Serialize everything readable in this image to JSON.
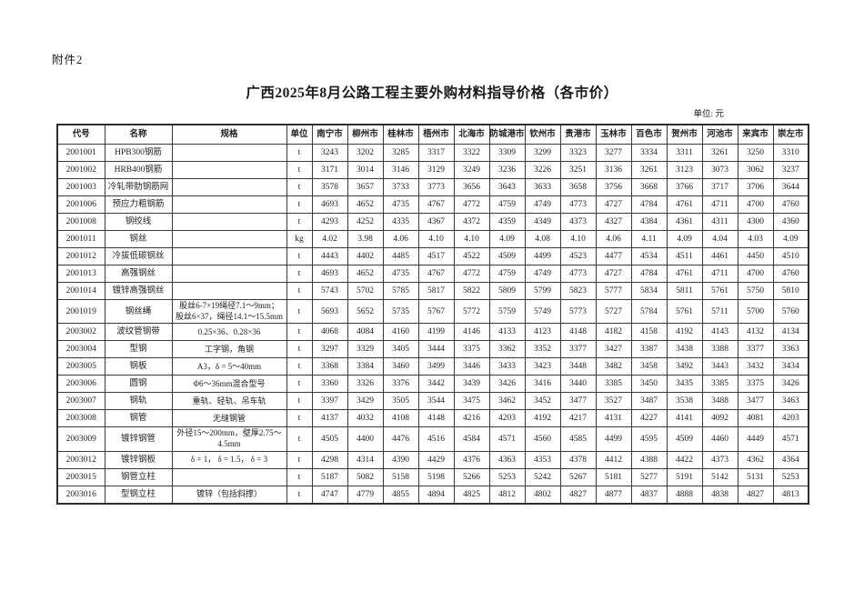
{
  "page": {
    "attachment_label": "附件2",
    "title": "广西2025年8月公路工程主要外购材料指导价格（各市价）",
    "unit_note": "单位: 元"
  },
  "table": {
    "headers": [
      "代号",
      "名称",
      "规格",
      "单位",
      "南宁市",
      "柳州市",
      "桂林市",
      "梧州市",
      "北海市",
      "防城港市",
      "钦州市",
      "贵港市",
      "玉林市",
      "百色市",
      "贺州市",
      "河池市",
      "来宾市",
      "崇左市"
    ],
    "rows": [
      {
        "code": "2001001",
        "name": "HPB300钢筋",
        "spec": "",
        "unit": "t",
        "prices": [
          "3243",
          "3202",
          "3285",
          "3317",
          "3322",
          "3309",
          "3299",
          "3323",
          "3277",
          "3334",
          "3311",
          "3261",
          "3250",
          "3310"
        ]
      },
      {
        "code": "2001002",
        "name": "HRB400钢筋",
        "spec": "",
        "unit": "t",
        "prices": [
          "3171",
          "3014",
          "3146",
          "3129",
          "3249",
          "3236",
          "3226",
          "3251",
          "3136",
          "3261",
          "3123",
          "3073",
          "3062",
          "3237"
        ]
      },
      {
        "code": "2001003",
        "name": "冷轧带肋钢筋网",
        "spec": "",
        "unit": "t",
        "prices": [
          "3578",
          "3657",
          "3733",
          "3773",
          "3656",
          "3643",
          "3633",
          "3658",
          "3756",
          "3668",
          "3766",
          "3717",
          "3706",
          "3644"
        ]
      },
      {
        "code": "2001006",
        "name": "预应力粗钢筋",
        "spec": "",
        "unit": "t",
        "prices": [
          "4693",
          "4652",
          "4735",
          "4767",
          "4772",
          "4759",
          "4749",
          "4773",
          "4727",
          "4784",
          "4761",
          "4711",
          "4700",
          "4760"
        ]
      },
      {
        "code": "2001008",
        "name": "钢绞线",
        "spec": "",
        "unit": "t",
        "prices": [
          "4293",
          "4252",
          "4335",
          "4367",
          "4372",
          "4359",
          "4349",
          "4373",
          "4327",
          "4384",
          "4361",
          "4311",
          "4300",
          "4360"
        ]
      },
      {
        "code": "2001011",
        "name": "钢丝",
        "spec": "",
        "unit": "kg",
        "prices": [
          "4.02",
          "3.98",
          "4.06",
          "4.10",
          "4.10",
          "4.09",
          "4.08",
          "4.10",
          "4.06",
          "4.11",
          "4.09",
          "4.04",
          "4.03",
          "4.09"
        ]
      },
      {
        "code": "2001012",
        "name": "冷拔低碳钢丝",
        "spec": "",
        "unit": "t",
        "prices": [
          "4443",
          "4402",
          "4485",
          "4517",
          "4522",
          "4509",
          "4499",
          "4523",
          "4477",
          "4534",
          "4511",
          "4461",
          "4450",
          "4510"
        ]
      },
      {
        "code": "2001013",
        "name": "高强钢丝",
        "spec": "",
        "unit": "t",
        "prices": [
          "4693",
          "4652",
          "4735",
          "4767",
          "4772",
          "4759",
          "4749",
          "4773",
          "4727",
          "4784",
          "4761",
          "4711",
          "4700",
          "4760"
        ]
      },
      {
        "code": "2001014",
        "name": "镀锌高强钢丝",
        "spec": "",
        "unit": "t",
        "prices": [
          "5743",
          "5702",
          "5785",
          "5817",
          "5822",
          "5809",
          "5799",
          "5823",
          "5777",
          "5834",
          "5811",
          "5761",
          "5750",
          "5810"
        ]
      },
      {
        "code": "2001019",
        "name": "钢丝绳",
        "spec": "股丝6-7×19绳径7.1～9mm； 股丝6×37，绳径14.1～15.5mm",
        "unit": "t",
        "prices": [
          "5693",
          "5652",
          "5735",
          "5767",
          "5772",
          "5759",
          "5749",
          "5773",
          "5727",
          "5784",
          "5761",
          "5711",
          "5700",
          "5760"
        ]
      },
      {
        "code": "2003002",
        "name": "波纹管钢带",
        "spec": "0.25×36、0.28×36",
        "unit": "t",
        "prices": [
          "4068",
          "4084",
          "4160",
          "4199",
          "4146",
          "4133",
          "4123",
          "4148",
          "4182",
          "4158",
          "4192",
          "4143",
          "4132",
          "4134"
        ]
      },
      {
        "code": "2003004",
        "name": "型钢",
        "spec": "工字钢，角钢",
        "unit": "t",
        "prices": [
          "3297",
          "3329",
          "3405",
          "3444",
          "3375",
          "3362",
          "3352",
          "3377",
          "3427",
          "3387",
          "3438",
          "3388",
          "3377",
          "3363"
        ]
      },
      {
        "code": "2003005",
        "name": "钢板",
        "spec": "A3，δ = 5～40mm",
        "unit": "t",
        "prices": [
          "3368",
          "3384",
          "3460",
          "3499",
          "3446",
          "3433",
          "3423",
          "3448",
          "3482",
          "3458",
          "3492",
          "3443",
          "3432",
          "3434"
        ]
      },
      {
        "code": "2003006",
        "name": "圆钢",
        "spec": "Φ6～36mm混合型号",
        "unit": "t",
        "prices": [
          "3360",
          "3326",
          "3376",
          "3442",
          "3439",
          "3426",
          "3416",
          "3440",
          "3385",
          "3450",
          "3435",
          "3385",
          "3375",
          "3426"
        ]
      },
      {
        "code": "2003007",
        "name": "钢轨",
        "spec": "重轨、轻轨、吊车轨",
        "unit": "t",
        "prices": [
          "3397",
          "3429",
          "3505",
          "3544",
          "3475",
          "3462",
          "3452",
          "3477",
          "3527",
          "3487",
          "3538",
          "3488",
          "3477",
          "3463"
        ]
      },
      {
        "code": "2003008",
        "name": "钢管",
        "spec": "无缝钢管",
        "unit": "t",
        "prices": [
          "4137",
          "4032",
          "4108",
          "4148",
          "4216",
          "4203",
          "4192",
          "4217",
          "4131",
          "4227",
          "4141",
          "4092",
          "4081",
          "4203"
        ]
      },
      {
        "code": "2003009",
        "name": "镀锌钢管",
        "spec": "外径15～200mm，壁厚2.75～ 4.5mm",
        "unit": "t",
        "prices": [
          "4505",
          "4400",
          "4476",
          "4516",
          "4584",
          "4571",
          "4560",
          "4585",
          "4499",
          "4595",
          "4509",
          "4460",
          "4449",
          "4571"
        ]
      },
      {
        "code": "2003012",
        "name": "镀锌钢板",
        "spec": "δ = 1， δ = 1.5， δ = 3",
        "unit": "t",
        "prices": [
          "4298",
          "4314",
          "4390",
          "4429",
          "4376",
          "4363",
          "4353",
          "4378",
          "4412",
          "4388",
          "4422",
          "4373",
          "4362",
          "4364"
        ]
      },
      {
        "code": "2003015",
        "name": "钢管立柱",
        "spec": "",
        "unit": "t",
        "prices": [
          "5187",
          "5082",
          "5158",
          "5198",
          "5266",
          "5253",
          "5242",
          "5267",
          "5181",
          "5277",
          "5191",
          "5142",
          "5131",
          "5253"
        ]
      },
      {
        "code": "2003016",
        "name": "型钢立柱",
        "spec": "镀锌（包括斜撑）",
        "unit": "t",
        "prices": [
          "4747",
          "4779",
          "4855",
          "4894",
          "4825",
          "4812",
          "4802",
          "4827",
          "4877",
          "4837",
          "4888",
          "4838",
          "4827",
          "4813"
        ]
      }
    ]
  }
}
